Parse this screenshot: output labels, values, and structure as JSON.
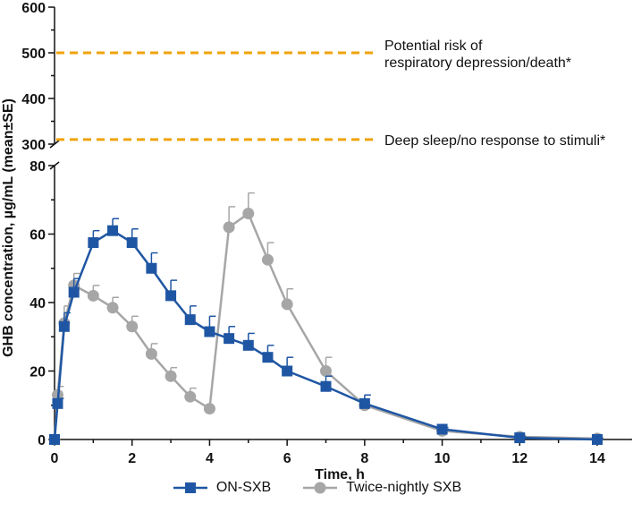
{
  "chart_data": {
    "type": "line",
    "x": [
      0,
      0.08,
      0.25,
      0.5,
      1,
      1.5,
      2,
      2.5,
      3,
      3.5,
      4,
      4.5,
      5,
      5.5,
      6,
      7,
      8,
      10,
      12,
      14
    ],
    "series": [
      {
        "name": "ON-SXB",
        "color": "#1f56a3",
        "marker": "square",
        "values": [
          0,
          10.5,
          33,
          43,
          57.5,
          61,
          57.5,
          50,
          42,
          35,
          31.5,
          29.5,
          27.5,
          24,
          20,
          15.5,
          10.5,
          3,
          0.5,
          0
        ],
        "se": [
          0,
          1.5,
          4,
          4,
          3.5,
          3.5,
          4,
          4.5,
          4.5,
          4,
          4.5,
          3.5,
          3.5,
          3.5,
          4,
          3,
          2.5,
          0.5,
          0.3,
          0.2
        ]
      },
      {
        "name": "Twice-nightly SXB",
        "color": "#a6a6a6",
        "marker": "circle",
        "values": [
          0,
          13,
          34,
          45,
          42,
          38.5,
          33,
          25,
          18.5,
          12.5,
          9,
          62,
          66,
          52.5,
          39.5,
          20,
          10,
          2.5,
          0.8,
          0.3
        ],
        "se": [
          0,
          2.5,
          5,
          3.5,
          3,
          3,
          3,
          3,
          2.5,
          2.5,
          0,
          6,
          6,
          5,
          4.5,
          4,
          3,
          0.5,
          0.3,
          0.2
        ]
      }
    ],
    "xlabel": "Time, h",
    "ylabel": "GHB concentration, µg/mL (mean±SE)",
    "xlim": [
      0,
      15
    ],
    "xticks": [
      "0",
      "2",
      "4",
      "6",
      "8",
      "10",
      "12",
      "14"
    ],
    "ylim_lower": [
      0,
      80
    ],
    "yticks_lower": [
      "0",
      "20",
      "40",
      "60",
      "80"
    ],
    "ylim_upper": [
      300,
      600
    ],
    "yticks_upper": [
      "300",
      "400",
      "500",
      "600"
    ],
    "axis_break": true,
    "reference_lines": [
      {
        "value": 500,
        "label": "Potential risk of\nrespiratory depression/death*",
        "color": "#f0a30a"
      },
      {
        "value": 310,
        "label": "Deep sleep/no response to stimuli*",
        "color": "#f0a30a"
      }
    ],
    "legend_position": "bottom"
  }
}
